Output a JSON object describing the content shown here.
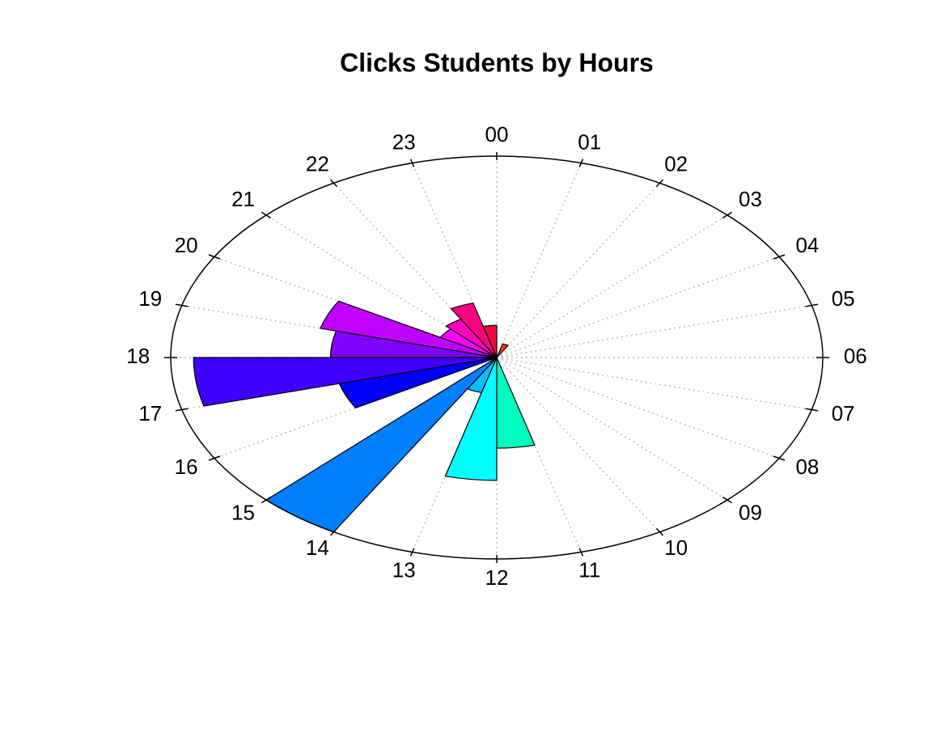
{
  "chart_data": {
    "type": "rose",
    "title": "Clicks Students by  Hours",
    "categories": [
      "00",
      "01",
      "02",
      "03",
      "04",
      "05",
      "06",
      "07",
      "08",
      "09",
      "10",
      "11",
      "12",
      "13",
      "14",
      "15",
      "16",
      "17",
      "18",
      "19",
      "20",
      "21",
      "22",
      "23"
    ],
    "values": [
      0,
      7,
      0,
      0,
      0,
      0,
      0,
      0,
      0,
      0,
      0,
      45,
      61,
      18,
      100,
      0,
      50,
      93,
      51,
      56,
      20,
      22,
      28,
      16
    ],
    "colors": [
      "#FF0000",
      "#FF4000",
      "#FF8000",
      "#FFBF00",
      "#FFFF00",
      "#BFFF00",
      "#80FF00",
      "#40FF00",
      "#00FF00",
      "#00FF40",
      "#00FF80",
      "#00FFBF",
      "#00FFFF",
      "#00BFFF",
      "#0080FF",
      "#0040FF",
      "#0000FF",
      "#4000FF",
      "#8000FF",
      "#BF00FF",
      "#FF00FF",
      "#FF00BF",
      "#FF0080",
      "#FF0040"
    ],
    "ylim": [
      0,
      100
    ],
    "grid": true
  }
}
